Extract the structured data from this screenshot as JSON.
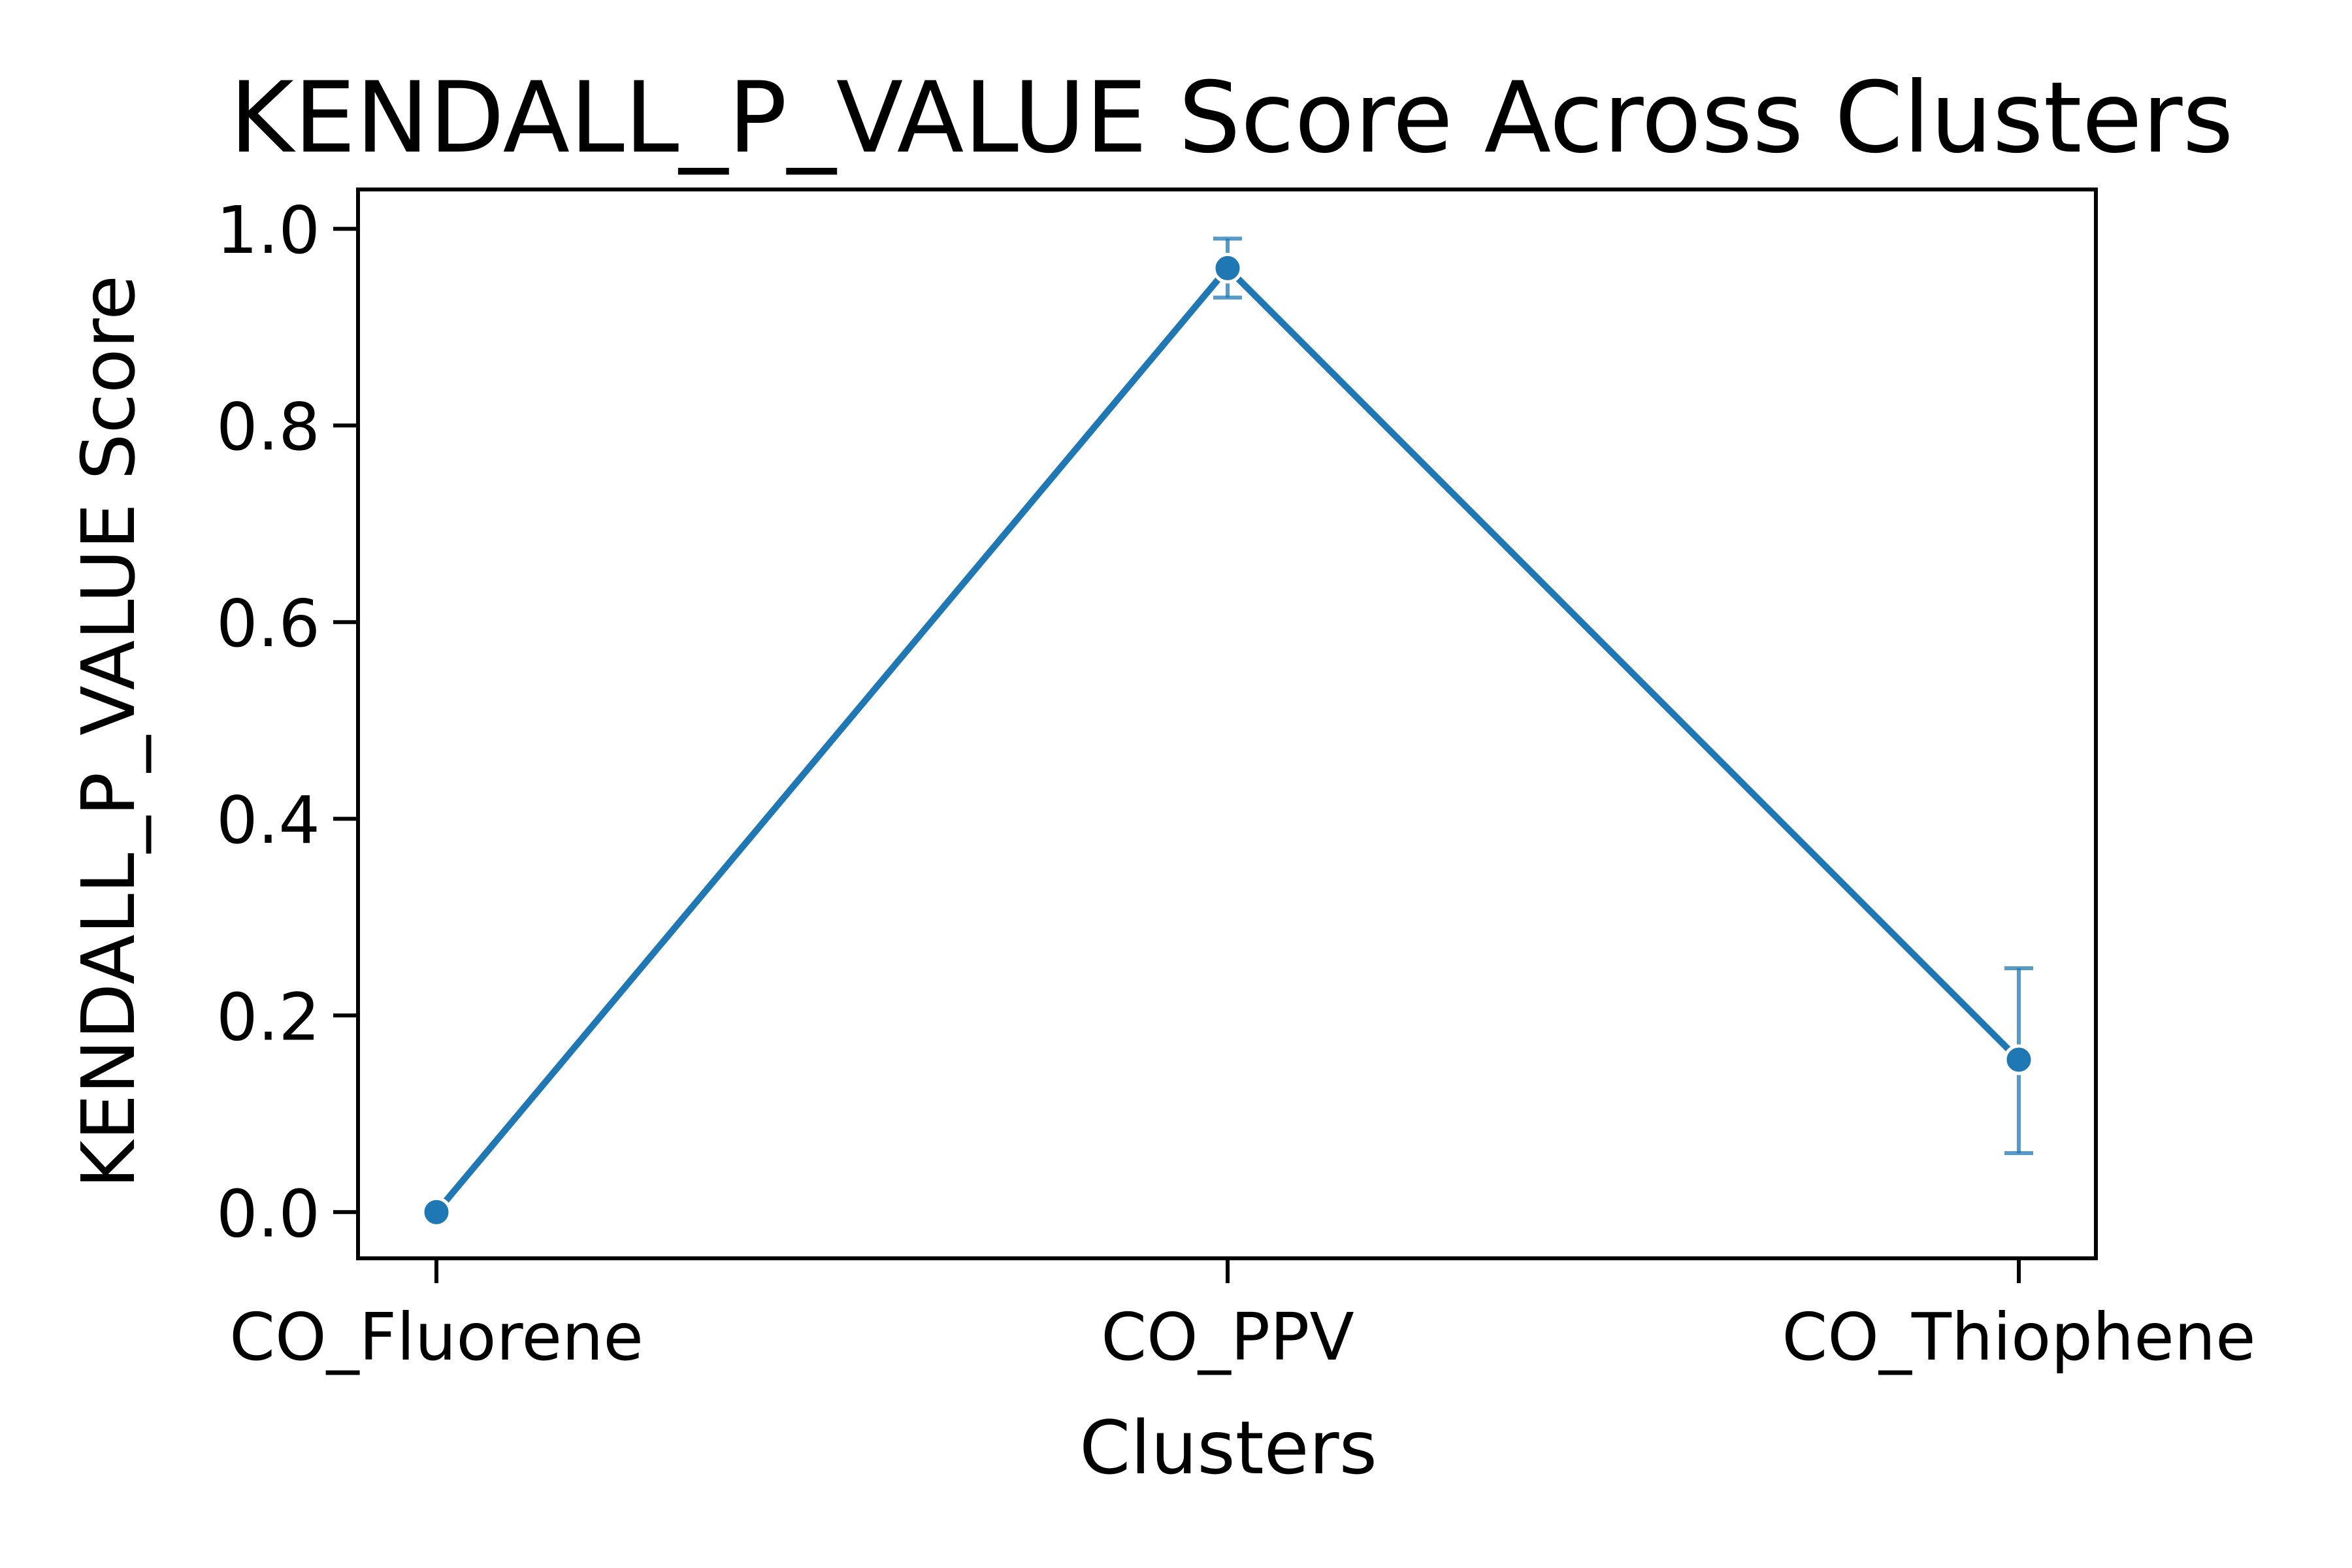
{
  "chart_data": {
    "type": "line",
    "title": "KENDALL_P_VALUE Score Across Clusters",
    "xlabel": "Clusters",
    "ylabel": "KENDALL_P_VALUE Score",
    "categories": [
      "CO_Fluorene",
      "CO_PPV",
      "CO_Thiophene"
    ],
    "series": [
      {
        "values": [
          0.0,
          0.96,
          0.155
        ],
        "error_low": [
          0.0,
          0.93,
          0.06
        ],
        "error_high": [
          0.0,
          0.99,
          0.248
        ],
        "color": "#1f77b4"
      }
    ],
    "ylim": [
      -0.047,
      1.04
    ],
    "yticks": [
      0.0,
      0.2,
      0.4,
      0.6,
      0.8,
      1.0
    ],
    "ytick_labels": [
      "0.0",
      "0.2",
      "0.4",
      "0.6",
      "0.8",
      "1.0"
    ],
    "grid": false,
    "legend": "none"
  }
}
